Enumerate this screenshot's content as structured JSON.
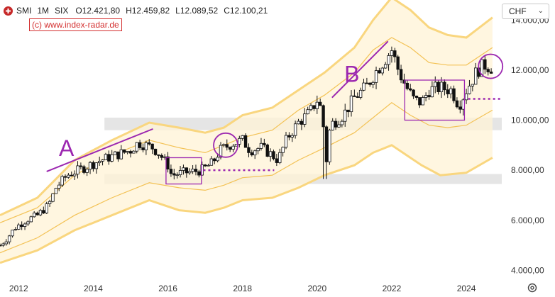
{
  "header": {
    "symbol": "SMI",
    "interval": "1M",
    "exchange": "SIX",
    "open": "O12.421,80",
    "high": "H12.459,82",
    "low": "L12.089,52",
    "close": "C12.100,21"
  },
  "watermark": "(c) www.index-radar.de",
  "currency": {
    "selected": "CHF"
  },
  "colors": {
    "up_candle": "#111111",
    "down_candle": "#111111",
    "band_fill": "#fff3d6",
    "outer_band_line": "#f9d67f",
    "inner_band_line": "#f3c255",
    "annotation": "#9c27b0",
    "support_zone": "#cfcfcf",
    "axis_text": "#333333"
  },
  "icons": {
    "logo": "swiss-flag-icon",
    "currency_dropdown": "chevron-down-icon",
    "settings": "settings-icon"
  },
  "chart_data": {
    "type": "candlestick",
    "title": "SMI · 1M · SIX",
    "x_axis": {
      "labels": [
        "2012",
        "2014",
        "2016",
        "2018",
        "2020",
        "2022",
        "2024"
      ],
      "range": [
        2011.5,
        2024.95
      ]
    },
    "y_axis": {
      "labels": [
        "4.000,00",
        "6.000,00",
        "8.000,00",
        "10.000,00",
        "12.000,00",
        "14.000,00"
      ],
      "range": [
        3700,
        14800
      ],
      "unit": "CHF"
    },
    "price_path": [
      [
        2011.5,
        5000
      ],
      [
        2011.7,
        5300
      ],
      [
        2011.9,
        5700
      ],
      [
        2012.2,
        6000
      ],
      [
        2012.5,
        6200
      ],
      [
        2012.8,
        6600
      ],
      [
        2013.0,
        7300
      ],
      [
        2013.3,
        7800
      ],
      [
        2013.6,
        8000
      ],
      [
        2013.9,
        8200
      ],
      [
        2014.2,
        8400
      ],
      [
        2014.5,
        8550
      ],
      [
        2014.8,
        8700
      ],
      [
        2015.0,
        8800
      ],
      [
        2015.2,
        9100
      ],
      [
        2015.4,
        9000
      ],
      [
        2015.6,
        8900
      ],
      [
        2015.8,
        8600
      ],
      [
        2016.0,
        8200
      ],
      [
        2016.1,
        7800
      ],
      [
        2016.4,
        7900
      ],
      [
        2016.7,
        7950
      ],
      [
        2016.9,
        8000
      ],
      [
        2017.2,
        8300
      ],
      [
        2017.4,
        8800
      ],
      [
        2017.7,
        9050
      ],
      [
        2018.0,
        9200
      ],
      [
        2018.2,
        8800
      ],
      [
        2018.5,
        8900
      ],
      [
        2018.8,
        8600
      ],
      [
        2018.95,
        8400
      ],
      [
        2019.2,
        9300
      ],
      [
        2019.5,
        9900
      ],
      [
        2019.8,
        10300
      ],
      [
        2020.0,
        10800
      ],
      [
        2020.15,
        10300
      ],
      [
        2020.22,
        8000
      ],
      [
        2020.35,
        9800
      ],
      [
        2020.7,
        10200
      ],
      [
        2021.0,
        10900
      ],
      [
        2021.3,
        11300
      ],
      [
        2021.6,
        12000
      ],
      [
        2021.9,
        12600
      ],
      [
        2022.0,
        12800
      ],
      [
        2022.2,
        11900
      ],
      [
        2022.4,
        11300
      ],
      [
        2022.6,
        10800
      ],
      [
        2022.8,
        10700
      ],
      [
        2023.0,
        11200
      ],
      [
        2023.3,
        11300
      ],
      [
        2023.6,
        11200
      ],
      [
        2023.8,
        10600
      ],
      [
        2024.0,
        11200
      ],
      [
        2024.3,
        12000
      ],
      [
        2024.5,
        12200
      ],
      [
        2024.7,
        12100
      ]
    ],
    "bands": {
      "outer_upper": [
        [
          2011.5,
          6200
        ],
        [
          2012.5,
          6900
        ],
        [
          2013.5,
          8400
        ],
        [
          2014.5,
          9200
        ],
        [
          2015.5,
          9900
        ],
        [
          2016.3,
          9700
        ],
        [
          2017.0,
          9500
        ],
        [
          2017.5,
          9700
        ],
        [
          2018.0,
          10200
        ],
        [
          2018.8,
          10500
        ],
        [
          2019.5,
          11200
        ],
        [
          2020.2,
          11900
        ],
        [
          2021.0,
          12900
        ],
        [
          2021.5,
          14000
        ],
        [
          2022.0,
          14900
        ],
        [
          2022.5,
          14400
        ],
        [
          2023.0,
          13700
        ],
        [
          2023.5,
          13400
        ],
        [
          2024.0,
          13300
        ],
        [
          2024.7,
          14100
        ]
      ],
      "inner_upper": [
        [
          2011.5,
          5900
        ],
        [
          2012.5,
          6500
        ],
        [
          2013.5,
          7800
        ],
        [
          2014.5,
          8600
        ],
        [
          2015.5,
          9200
        ],
        [
          2016.3,
          8900
        ],
        [
          2017.0,
          8700
        ],
        [
          2017.5,
          9000
        ],
        [
          2018.0,
          9300
        ],
        [
          2018.8,
          9600
        ],
        [
          2019.5,
          10400
        ],
        [
          2020.2,
          11000
        ],
        [
          2021.0,
          11900
        ],
        [
          2021.5,
          12800
        ],
        [
          2022.0,
          13300
        ],
        [
          2022.5,
          12900
        ],
        [
          2023.0,
          12300
        ],
        [
          2023.5,
          12200
        ],
        [
          2024.0,
          12200
        ],
        [
          2024.7,
          12900
        ]
      ],
      "inner_lower": [
        [
          2011.5,
          4700
        ],
        [
          2012.5,
          5300
        ],
        [
          2013.5,
          6200
        ],
        [
          2014.5,
          6900
        ],
        [
          2015.5,
          7500
        ],
        [
          2016.3,
          7300
        ],
        [
          2017.0,
          7200
        ],
        [
          2017.5,
          7400
        ],
        [
          2018.0,
          7700
        ],
        [
          2018.8,
          7800
        ],
        [
          2019.5,
          8400
        ],
        [
          2020.2,
          8900
        ],
        [
          2021.0,
          9500
        ],
        [
          2021.5,
          10100
        ],
        [
          2022.0,
          10700
        ],
        [
          2022.5,
          10200
        ],
        [
          2023.0,
          9800
        ],
        [
          2023.5,
          9700
        ],
        [
          2024.0,
          9800
        ],
        [
          2024.7,
          10400
        ]
      ],
      "outer_lower": [
        [
          2011.5,
          4300
        ],
        [
          2012.5,
          4800
        ],
        [
          2013.5,
          5600
        ],
        [
          2014.5,
          6200
        ],
        [
          2015.5,
          6800
        ],
        [
          2016.3,
          6400
        ],
        [
          2017.0,
          6300
        ],
        [
          2017.5,
          6500
        ],
        [
          2018.0,
          6800
        ],
        [
          2018.8,
          6900
        ],
        [
          2019.5,
          7300
        ],
        [
          2020.2,
          7800
        ],
        [
          2021.0,
          8200
        ],
        [
          2021.5,
          8700
        ],
        [
          2022.0,
          9000
        ],
        [
          2022.5,
          8500
        ],
        [
          2022.8,
          8200
        ],
        [
          2023.3,
          7800
        ],
        [
          2024.0,
          7900
        ],
        [
          2024.7,
          8500
        ]
      ]
    },
    "annotations": [
      {
        "label": "A",
        "line": [
          [
            2012.75,
            7950
          ],
          [
            2015.6,
            9650
          ]
        ]
      },
      {
        "label": "B",
        "line": [
          [
            2020.4,
            10900
          ],
          [
            2021.9,
            13150
          ]
        ]
      }
    ],
    "zones": [
      [
        9600,
        10100
      ],
      [
        7450,
        7850
      ]
    ],
    "boxes": [
      [
        2015.95,
        7450,
        2016.9,
        8500
      ],
      [
        2022.35,
        10000,
        2023.95,
        11600
      ]
    ],
    "circles": [
      [
        2017.55,
        9000
      ],
      [
        2024.65,
        12150
      ]
    ],
    "dotted_levels": [
      [
        2016.95,
        2018.85,
        8000
      ],
      [
        2024.05,
        2024.95,
        10850
      ]
    ]
  }
}
